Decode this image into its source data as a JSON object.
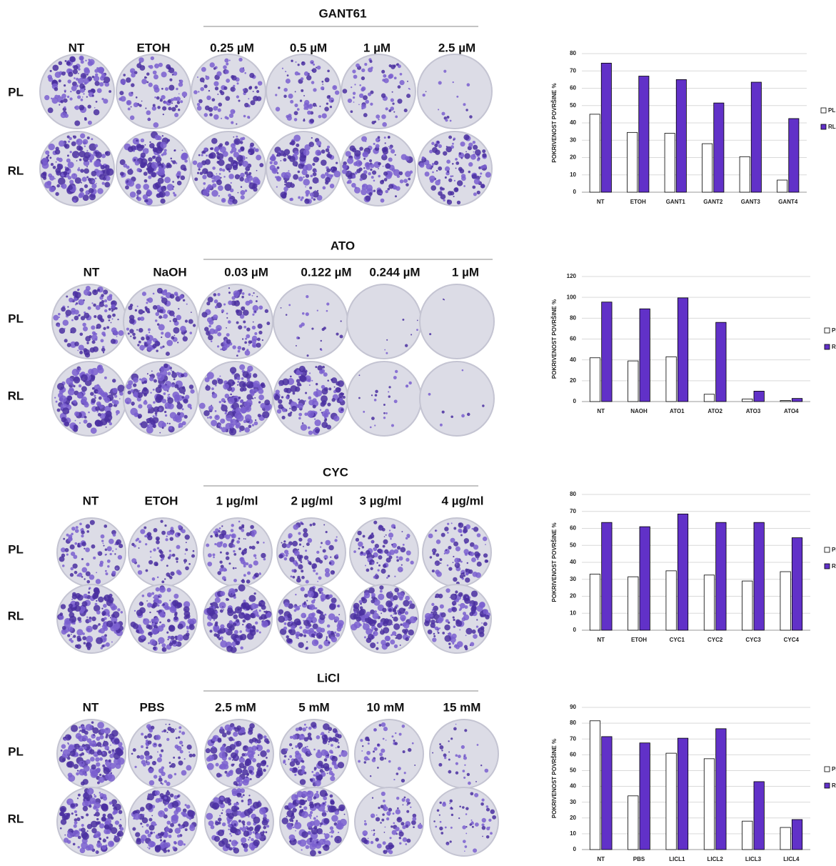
{
  "plates": [
    {
      "group": "GANT61",
      "columns": [
        "NT",
        "ETOH",
        "0.25 µM",
        "0.5 µM",
        "1 µM",
        "2.5 µM"
      ],
      "rows": [
        "PL",
        "RL"
      ]
    },
    {
      "group": "ATO",
      "columns": [
        "NT",
        "NaOH",
        "0.03 µM",
        "0.122 µM",
        "0.244 µM",
        "1 µM"
      ],
      "rows": [
        "PL",
        "RL"
      ]
    },
    {
      "group": "CYC",
      "columns": [
        "NT",
        "ETOH",
        "1 µg/ml",
        "2 µg/ml",
        "3 µg/ml",
        "4 µg/ml"
      ],
      "rows": [
        "PL",
        "RL"
      ]
    },
    {
      "group": "LiCl",
      "columns": [
        "NT",
        "PBS",
        "2.5 mM",
        "5 mM",
        "10 mM",
        "15 mM"
      ],
      "rows": [
        "PL",
        "RL"
      ]
    }
  ],
  "chart_data": [
    {
      "type": "bar",
      "y_label": "POKRIVENOST POVRŠINE %",
      "categories": [
        "NT",
        "ETOH",
        "GANT1",
        "GANT2",
        "GANT3",
        "GANT4"
      ],
      "series": [
        {
          "name": "PL",
          "color": "#ffffff",
          "values": [
            45,
            34.5,
            34,
            28,
            20.5,
            7
          ]
        },
        {
          "name": "RL",
          "color": "#6131c8",
          "values": [
            74.5,
            67,
            65,
            51.5,
            63.5,
            42.5
          ]
        }
      ],
      "ylim": [
        0,
        80
      ],
      "yticks": [
        0,
        10,
        20,
        30,
        40,
        50,
        60,
        70,
        80
      ],
      "grid": true,
      "legend": "right"
    },
    {
      "type": "bar",
      "y_label": "POKRIVENOST POVRŠINE %",
      "categories": [
        "NT",
        "NAOH",
        "ATO1",
        "ATO2",
        "ATO3",
        "ATO4"
      ],
      "series": [
        {
          "name": "PL",
          "color": "#ffffff",
          "values": [
            42,
            39,
            43,
            7,
            2.5,
            1
          ]
        },
        {
          "name": "RL",
          "color": "#6131c8",
          "values": [
            95.5,
            89,
            99.5,
            76,
            10,
            3
          ]
        }
      ],
      "ylim": [
        0,
        120
      ],
      "yticks": [
        0,
        20,
        40,
        60,
        80,
        100,
        120
      ],
      "grid": true,
      "legend": "right"
    },
    {
      "type": "bar",
      "y_label": "POKRIVENOST POVRŠINE %",
      "categories": [
        "NT",
        "ETOH",
        "CYC1",
        "CYC2",
        "CYC3",
        "CYC4"
      ],
      "series": [
        {
          "name": "PL",
          "color": "#ffffff",
          "values": [
            33,
            31.5,
            35,
            32.5,
            29,
            34.5
          ]
        },
        {
          "name": "RL",
          "color": "#6131c8",
          "values": [
            63.5,
            61,
            68.5,
            63.5,
            63.5,
            54.5
          ]
        }
      ],
      "ylim": [
        0,
        80
      ],
      "yticks": [
        0,
        10,
        20,
        30,
        40,
        50,
        60,
        70,
        80
      ],
      "grid": true,
      "legend": "right"
    },
    {
      "type": "bar",
      "y_label": "POKRIVENOST POVRŠINE %",
      "categories": [
        "NT",
        "PBS",
        "LICL1",
        "LICL2",
        "LICL3",
        "LICL4"
      ],
      "series": [
        {
          "name": "PL",
          "color": "#ffffff",
          "values": [
            81.5,
            34,
            61,
            57.5,
            18,
            14
          ]
        },
        {
          "name": "RL",
          "color": "#6131c8",
          "values": [
            71.5,
            67.5,
            70.5,
            76.5,
            43,
            19
          ]
        }
      ],
      "ylim": [
        0,
        90
      ],
      "yticks": [
        0,
        10,
        20,
        30,
        40,
        50,
        60,
        70,
        80,
        90
      ],
      "grid": true,
      "legend": "right"
    }
  ]
}
